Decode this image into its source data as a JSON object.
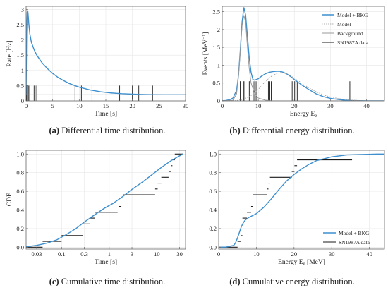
{
  "figure": {
    "captions": [
      {
        "tag": "(a)",
        "text": "Differential time distribution."
      },
      {
        "tag": "(b)",
        "text": "Differential energy distribution."
      },
      {
        "tag": "(c)",
        "text": "Cumulative time distribution."
      },
      {
        "tag": "(d)",
        "text": "Cumulative energy distribution."
      }
    ],
    "colors": {
      "model": "#3d8fcf",
      "background": "#9a9a9a",
      "data": "#1a1a1a",
      "frame": "#666666",
      "grid": "#e6e6e6"
    }
  },
  "chart_data": [
    {
      "id": "a",
      "type": "line",
      "xlabel": "Time [s]",
      "ylabel": "Rate [Hz]",
      "xlim": [
        0,
        30
      ],
      "ylim": [
        0,
        3.1
      ],
      "xticks": [
        0,
        5,
        10,
        15,
        20,
        25,
        30
      ],
      "yticks": [
        0,
        0.5,
        1,
        1.5,
        2,
        2.5,
        3
      ],
      "grid": true,
      "series": [
        {
          "kind": "model",
          "x": [
            0,
            0.1,
            0.2,
            0.3,
            0.4,
            0.5,
            0.7,
            1,
            1.5,
            2,
            3,
            4,
            5,
            6,
            7,
            8,
            9,
            10,
            12,
            14,
            16,
            18,
            20,
            22,
            24,
            26,
            28,
            30
          ],
          "y": [
            0.2,
            2.2,
            2.9,
            2.97,
            2.8,
            2.55,
            2.2,
            1.92,
            1.68,
            1.5,
            1.25,
            1.06,
            0.9,
            0.77,
            0.67,
            0.58,
            0.51,
            0.45,
            0.36,
            0.3,
            0.26,
            0.235,
            0.22,
            0.21,
            0.205,
            0.2,
            0.2,
            0.2
          ]
        },
        {
          "kind": "background",
          "x": [
            0,
            30
          ],
          "y": [
            0.2,
            0.2
          ]
        }
      ],
      "events": [
        0,
        0.1,
        0.3,
        0.3,
        0.5,
        0.7,
        1.5,
        1.7,
        2,
        9.2,
        10.4,
        12.4,
        17.6,
        20,
        21.2,
        23.8
      ],
      "event_height": 0.5
    },
    {
      "id": "b",
      "type": "line",
      "xlabel": "Energy E",
      "xlabel_sub": "e",
      "ylabel": "Events [MeV",
      "ylabel_sup": "−1",
      "ylabel_end": "]",
      "xlim": [
        0,
        45
      ],
      "ylim": [
        0,
        2.65
      ],
      "xticks": [
        0,
        10,
        20,
        30,
        40
      ],
      "yticks": [
        0,
        0.5,
        1,
        1.5,
        2,
        2.5
      ],
      "grid": true,
      "legend": {
        "position": "top-right",
        "entries": [
          "Model + BKG",
          "Model",
          "Background",
          "SN1987A data"
        ]
      },
      "series": [
        {
          "kind": "model_bkg",
          "x": [
            0,
            1,
            2,
            3,
            4,
            4.5,
            5,
            5.5,
            6,
            6.5,
            7,
            7.5,
            8,
            8.5,
            9,
            10,
            11,
            12,
            13,
            14,
            15,
            16,
            17,
            18,
            19,
            20,
            22,
            24,
            26,
            28,
            30,
            32,
            34,
            36,
            38,
            40,
            45
          ],
          "y": [
            0,
            0.01,
            0.03,
            0.08,
            0.3,
            0.7,
            1.4,
            2.2,
            2.62,
            2.4,
            1.8,
            1.2,
            0.8,
            0.6,
            0.58,
            0.62,
            0.7,
            0.76,
            0.8,
            0.82,
            0.83,
            0.83,
            0.8,
            0.75,
            0.68,
            0.6,
            0.45,
            0.32,
            0.2,
            0.12,
            0.07,
            0.04,
            0.02,
            0.01,
            0.005,
            0,
            0
          ]
        },
        {
          "kind": "model",
          "x": [
            0,
            2,
            4,
            6,
            8,
            10,
            12,
            14,
            16,
            18,
            20,
            22,
            24,
            26,
            28,
            30,
            32,
            34,
            36,
            38,
            40,
            45
          ],
          "y": [
            0,
            0.002,
            0.01,
            0.05,
            0.15,
            0.32,
            0.55,
            0.72,
            0.8,
            0.76,
            0.64,
            0.5,
            0.37,
            0.26,
            0.17,
            0.11,
            0.07,
            0.04,
            0.02,
            0.01,
            0.005,
            0
          ]
        },
        {
          "kind": "background",
          "x": [
            0,
            3,
            4,
            4.5,
            5,
            5.5,
            6,
            6.5,
            7,
            7.5,
            8,
            9,
            10,
            12,
            14,
            45
          ],
          "y": [
            0,
            0.02,
            0.2,
            0.7,
            1.35,
            2.1,
            2.4,
            2.2,
            1.5,
            0.9,
            0.5,
            0.2,
            0.08,
            0.02,
            0,
            0
          ]
        }
      ],
      "events": [
        5,
        6,
        6.3,
        7.5,
        8.6,
        9,
        9.4,
        12.8,
        13.2,
        13.6,
        19.4,
        20.1,
        20.8,
        35.4
      ],
      "event_height": 0.55
    },
    {
      "id": "c",
      "type": "line",
      "xlabel": "Time [s]",
      "ylabel": "CDF",
      "xscale": "log",
      "xlim": [
        0.018,
        40
      ],
      "ylim": [
        -0.02,
        1.04
      ],
      "xticks": [
        0.03,
        0.1,
        0.3,
        1,
        3,
        10,
        30
      ],
      "xticklabels": [
        "0.03",
        "0.1",
        "0.3",
        "1",
        "3",
        "10",
        "30"
      ],
      "yticks": [
        0,
        0.2,
        0.4,
        0.6,
        0.8,
        1
      ],
      "yticklabels": [
        "0.0",
        "0.2",
        "0.4",
        "0.6",
        "0.8",
        "1.0"
      ],
      "grid": true,
      "series": [
        {
          "kind": "model",
          "x": [
            0.018,
            0.03,
            0.05,
            0.08,
            0.12,
            0.2,
            0.3,
            0.5,
            0.8,
            1.2,
            2,
            3,
            5,
            8,
            12,
            20,
            35
          ],
          "y": [
            0.005,
            0.02,
            0.045,
            0.08,
            0.13,
            0.2,
            0.27,
            0.35,
            0.42,
            0.47,
            0.55,
            0.62,
            0.7,
            0.78,
            0.85,
            0.93,
            1
          ]
        }
      ],
      "steps": [
        {
          "x0": 0.018,
          "x1": 0.04,
          "y": 0
        },
        {
          "x0": 0.04,
          "x1": 0.1,
          "y": 0.0625
        },
        {
          "x0": 0.1,
          "x1": 0.28,
          "y": 0.125
        },
        {
          "x0": 0.28,
          "x1": 0.4,
          "y": 0.25
        },
        {
          "x0": 0.4,
          "x1": 0.5,
          "y": 0.3125
        },
        {
          "x0": 0.5,
          "x1": 0.7,
          "y": 0.375
        },
        {
          "x0": 0.7,
          "x1": 1.5,
          "y": 0.375
        },
        {
          "x0": 1.6,
          "x1": 1.8,
          "y": 0.4375
        },
        {
          "x0": 2,
          "x1": 9.2,
          "y": 0.5625
        },
        {
          "x0": 9.2,
          "x1": 10.4,
          "y": 0.625
        },
        {
          "x0": 10.4,
          "x1": 12.4,
          "y": 0.6875
        },
        {
          "x0": 12.4,
          "x1": 17.6,
          "y": 0.75
        },
        {
          "x0": 17.6,
          "x1": 20,
          "y": 0.8125
        },
        {
          "x0": 20,
          "x1": 21.2,
          "y": 0.875
        },
        {
          "x0": 21.2,
          "x1": 23.8,
          "y": 0.9375
        },
        {
          "x0": 23.8,
          "x1": 35,
          "y": 1
        }
      ]
    },
    {
      "id": "d",
      "type": "line",
      "xlabel": "Energy E",
      "xlabel_sub": "e",
      "xlabel_end": " [MeV]",
      "ylabel": "",
      "xlim": [
        0,
        44
      ],
      "ylim": [
        -0.02,
        1.04
      ],
      "xticks": [
        0,
        10,
        20,
        30,
        40
      ],
      "yticks": [
        0,
        0.2,
        0.4,
        0.6,
        0.8,
        1
      ],
      "yticklabels": [
        "0.0",
        "0.2",
        "0.4",
        "0.6",
        "0.8",
        "1.0"
      ],
      "grid": true,
      "legend": {
        "position": "bottom-right",
        "entries": [
          "Model + BKG",
          "SN1987A data"
        ]
      },
      "series": [
        {
          "kind": "model",
          "x": [
            0,
            2,
            4,
            4.5,
            5,
            5.5,
            6,
            6.5,
            7,
            8,
            9,
            10,
            12,
            14,
            16,
            18,
            20,
            22,
            24,
            26,
            28,
            30,
            34,
            38,
            42,
            44
          ],
          "y": [
            0,
            0.002,
            0.02,
            0.05,
            0.1,
            0.16,
            0.22,
            0.26,
            0.29,
            0.32,
            0.34,
            0.36,
            0.43,
            0.52,
            0.62,
            0.71,
            0.78,
            0.84,
            0.89,
            0.93,
            0.95,
            0.97,
            0.99,
            0.995,
            1,
            1
          ]
        }
      ],
      "steps": [
        {
          "x0": 0,
          "x1": 5,
          "y": 0
        },
        {
          "x0": 5,
          "x1": 6,
          "y": 0.0625
        },
        {
          "x0": 6,
          "x1": 6.3,
          "y": 0.125
        },
        {
          "x0": 6.3,
          "x1": 7.5,
          "y": 0.3125
        },
        {
          "x0": 7.5,
          "x1": 8.6,
          "y": 0.375
        },
        {
          "x0": 8.6,
          "x1": 9,
          "y": 0.4375
        },
        {
          "x0": 9,
          "x1": 12.8,
          "y": 0.5625
        },
        {
          "x0": 12.8,
          "x1": 13.2,
          "y": 0.625
        },
        {
          "x0": 13.2,
          "x1": 13.6,
          "y": 0.6875
        },
        {
          "x0": 13.6,
          "x1": 19.4,
          "y": 0.75
        },
        {
          "x0": 19.4,
          "x1": 20.1,
          "y": 0.8125
        },
        {
          "x0": 20.1,
          "x1": 20.8,
          "y": 0.875
        },
        {
          "x0": 20.8,
          "x1": 35.4,
          "y": 0.9375
        }
      ]
    }
  ]
}
